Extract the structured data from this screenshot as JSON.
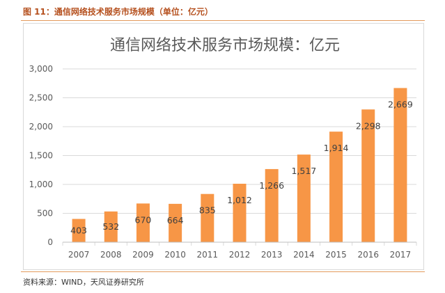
{
  "figure": {
    "caption": "图 11：通信网络技术服务市场规模（单位：亿元）",
    "source": "资料来源：WIND，天风证券研究所"
  },
  "colors": {
    "bar": "#f79646",
    "grid": "#d9d9d9",
    "rule": "#e39a5c",
    "caption": "#b5501e"
  },
  "chart_data": {
    "type": "bar",
    "title": "通信网络技术服务市场规模：亿元",
    "xlabel": "",
    "ylabel": "",
    "categories": [
      "2007",
      "2008",
      "2009",
      "2010",
      "2011",
      "2012",
      "2013",
      "2014",
      "2015",
      "2016",
      "2017"
    ],
    "values": [
      403,
      532,
      670,
      664,
      835,
      1012,
      1266,
      1517,
      1914,
      2298,
      2669
    ],
    "value_labels": [
      "403",
      "532",
      "670",
      "664",
      "835",
      "1,012",
      "1,266",
      "1,517",
      "1,914",
      "2,298",
      "2,669"
    ],
    "ylim": [
      0,
      3000
    ],
    "yticks": [
      0,
      500,
      1000,
      1500,
      2000,
      2500,
      3000
    ],
    "ytick_labels": [
      "0",
      "500",
      "1,000",
      "1,500",
      "2,000",
      "2,500",
      "3,000"
    ],
    "grid": true,
    "legend": "none"
  }
}
